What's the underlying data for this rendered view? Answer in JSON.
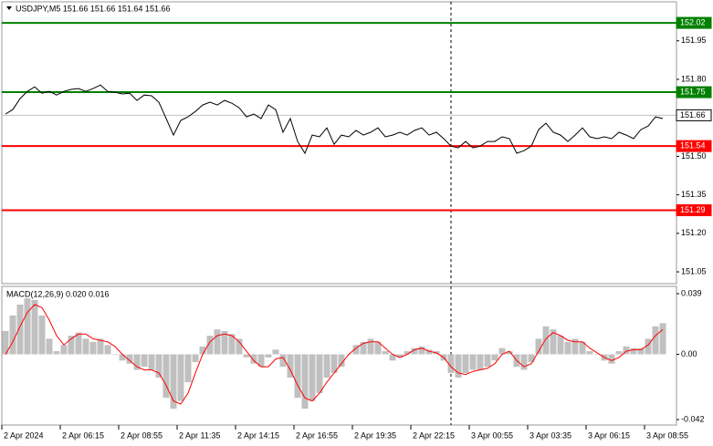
{
  "chart_data": [
    {
      "type": "line",
      "title": "USDJPY,M5  151.66 151.66 151.64 151.66",
      "categories": [
        "2 Apr 2024",
        null,
        null,
        null,
        null,
        null,
        null,
        null,
        "2 Apr 06:15",
        null,
        null,
        null,
        null,
        null,
        null,
        null,
        "2 Apr 08:55",
        null,
        null,
        null,
        null,
        null,
        null,
        null,
        "2 Apr 11:35",
        null,
        null,
        null,
        null,
        null,
        null,
        null,
        "2 Apr 14:15",
        null,
        null,
        null,
        null,
        null,
        null,
        null,
        "2 Apr 16:55",
        null,
        null,
        null,
        null,
        null,
        null,
        null,
        "2 Apr 19:35",
        null,
        null,
        null,
        null,
        null,
        null,
        null,
        "2 Apr 22:15",
        null,
        null,
        null,
        null,
        null,
        null,
        null,
        "3 Apr 00:55",
        null,
        null,
        null,
        null,
        null,
        null,
        null,
        "3 Apr 03:35",
        null,
        null,
        null,
        null,
        null,
        null,
        null,
        "3 Apr 06:15",
        null,
        null,
        null,
        null,
        null,
        null,
        null,
        "3 Apr 08:55",
        null,
        null
      ],
      "series": [
        {
          "color": "#000000",
          "values": [
            151.665,
            151.682,
            151.725,
            151.753,
            151.771,
            151.746,
            151.753,
            151.739,
            151.753,
            151.761,
            151.764,
            151.753,
            151.764,
            151.778,
            151.753,
            151.75,
            151.743,
            151.746,
            151.718,
            151.739,
            151.736,
            151.711,
            151.647,
            151.583,
            151.64,
            151.654,
            151.675,
            151.7,
            151.711,
            151.7,
            151.718,
            151.707,
            151.689,
            151.654,
            151.665,
            151.647,
            151.7,
            151.682,
            151.594,
            151.647,
            151.558,
            151.512,
            151.583,
            151.576,
            151.611,
            151.547,
            151.583,
            151.576,
            151.601,
            151.583,
            151.594,
            151.611,
            151.576,
            151.583,
            151.594,
            151.583,
            151.601,
            151.611,
            151.583,
            151.594,
            151.569,
            151.54,
            151.533,
            151.558,
            151.533,
            151.54,
            151.558,
            151.558,
            151.576,
            151.569,
            151.512,
            151.522,
            151.54,
            151.604,
            151.629,
            151.594,
            151.583,
            151.558,
            151.583,
            151.611,
            151.576,
            151.569,
            151.576,
            151.569,
            151.594,
            151.583,
            151.569,
            151.604,
            151.618,
            151.654,
            151.647
          ]
        }
      ],
      "levels": [
        {
          "value": 152.02,
          "color": "#008000"
        },
        {
          "value": 151.75,
          "color": "#008000"
        },
        {
          "value": 151.66,
          "color": "#c0c0c0"
        },
        {
          "value": 151.54,
          "color": "#ff0000"
        },
        {
          "value": 151.29,
          "color": "#ff0000"
        }
      ],
      "ylim": [
        151.004,
        152.102
      ],
      "yticks": [
        {
          "value": 151.95,
          "label": "151.95"
        },
        {
          "value": 151.8,
          "label": "151.80"
        },
        {
          "value": 151.5,
          "label": "151.50"
        },
        {
          "value": 151.35,
          "label": "151.35"
        },
        {
          "value": 151.2,
          "label": "151.20"
        },
        {
          "value": 151.05,
          "label": "151.05"
        }
      ]
    },
    {
      "type": "bar",
      "title": "MACD(12,26,9) 0.020 0.016",
      "series": [
        {
          "color": "#c0c0c0",
          "values": [
            0.015,
            0.025,
            0.032,
            0.036,
            0.035,
            0.025,
            0.01,
            0.002,
            0.006,
            0.012,
            0.014,
            0.01,
            0.008,
            0.01,
            0.006,
            0.0,
            -0.004,
            -0.006,
            -0.01,
            -0.008,
            -0.01,
            -0.015,
            -0.028,
            -0.035,
            -0.03,
            -0.018,
            -0.005,
            0.005,
            0.012,
            0.016,
            0.015,
            0.013,
            0.01,
            -0.002,
            -0.006,
            -0.008,
            -0.002,
            0.003,
            -0.008,
            -0.015,
            -0.028,
            -0.035,
            -0.03,
            -0.025,
            -0.015,
            -0.012,
            -0.008,
            0.0,
            0.006,
            0.008,
            0.01,
            0.008,
            0.002,
            -0.004,
            -0.002,
            0.002,
            0.004,
            0.005,
            0.003,
            0.002,
            -0.004,
            -0.012,
            -0.015,
            -0.012,
            -0.01,
            -0.01,
            -0.008,
            -0.004,
            0.004,
            0.002,
            -0.008,
            -0.01,
            -0.005,
            0.01,
            0.018,
            0.016,
            0.012,
            0.008,
            0.01,
            0.008,
            0.002,
            0.0,
            -0.004,
            -0.006,
            0.002,
            0.005,
            0.004,
            0.004,
            0.01,
            0.018,
            0.02
          ]
        },
        {
          "type": "line",
          "color": "#ff0000",
          "values": [
            0.0,
            0.008,
            0.018,
            0.027,
            0.032,
            0.03,
            0.022,
            0.012,
            0.006,
            0.01,
            0.013,
            0.013,
            0.01,
            0.009,
            0.008,
            0.005,
            0.0,
            -0.004,
            -0.008,
            -0.01,
            -0.01,
            -0.012,
            -0.02,
            -0.03,
            -0.032,
            -0.025,
            -0.012,
            0.0,
            0.008,
            0.012,
            0.013,
            0.012,
            0.008,
            0.002,
            -0.004,
            -0.008,
            -0.008,
            -0.003,
            -0.002,
            -0.01,
            -0.02,
            -0.028,
            -0.03,
            -0.025,
            -0.018,
            -0.012,
            -0.006,
            0.0,
            0.004,
            0.007,
            0.008,
            0.008,
            0.004,
            0.0,
            -0.002,
            0.0,
            0.003,
            0.004,
            0.002,
            0.001,
            -0.002,
            -0.008,
            -0.012,
            -0.013,
            -0.011,
            -0.01,
            -0.009,
            -0.006,
            0.0,
            0.002,
            -0.004,
            -0.008,
            -0.006,
            0.002,
            0.01,
            0.014,
            0.012,
            0.009,
            0.008,
            0.008,
            0.004,
            0.001,
            -0.002,
            -0.004,
            -0.002,
            0.002,
            0.003,
            0.003,
            0.006,
            0.012,
            0.016
          ]
        }
      ],
      "ylim": [
        -0.0455,
        0.0437
      ],
      "yticks": [
        0.039,
        {
          "value": 0,
          "label": "0.00"
        },
        -0.042
      ]
    }
  ]
}
